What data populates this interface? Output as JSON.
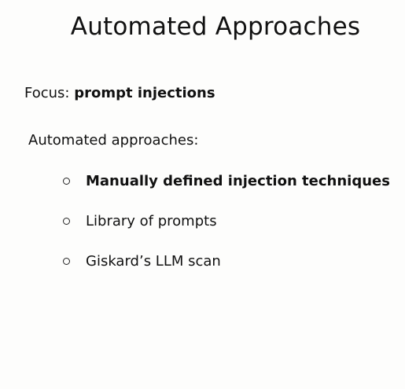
{
  "slide": {
    "title": "Automated Approaches",
    "focus": {
      "label": "Focus:",
      "value": "prompt injections"
    },
    "subheading": "Automated approaches:",
    "bullets": [
      {
        "text": "Manually defined injection techniques",
        "bold": true
      },
      {
        "text": "Library of prompts",
        "bold": false
      },
      {
        "text": "Giskard’s LLM scan",
        "bold": false
      }
    ]
  }
}
